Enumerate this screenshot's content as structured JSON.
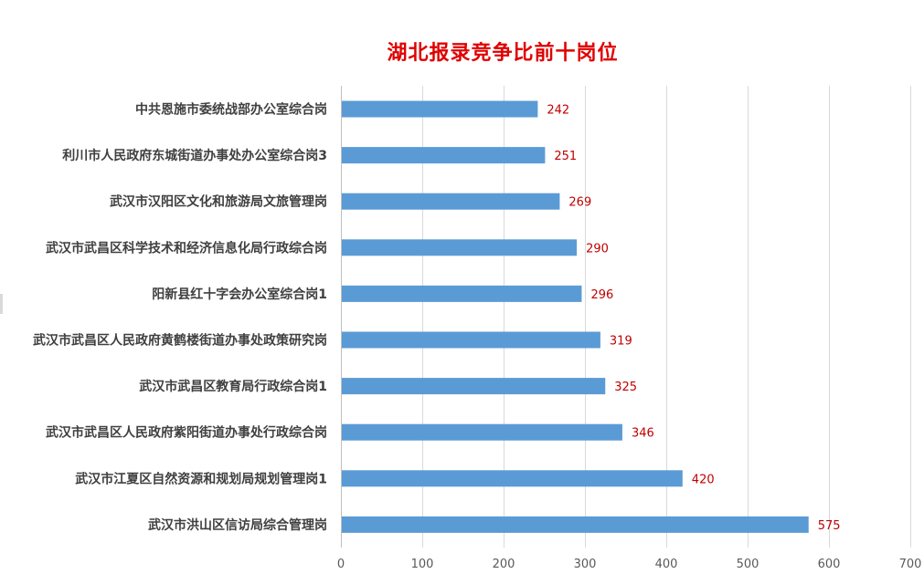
{
  "chart_data": {
    "type": "bar",
    "orientation": "horizontal",
    "title": "湖北报录竞争比前十岗位",
    "categories": [
      "中共恩施市委统战部办公室综合岗",
      "利川市人民政府东城街道办事处办公室综合岗3",
      "武汉市汉阳区文化和旅游局文旅管理岗",
      "武汉市武昌区科学技术和经济信息化局行政综合岗",
      "阳新县红十字会办公室综合岗1",
      "武汉市武昌区人民政府黄鹤楼街道办事处政策研究岗",
      "武汉市武昌区教育局行政综合岗1",
      "武汉市武昌区人民政府紫阳街道办事处行政综合岗",
      "武汉市江夏区自然资源和规划局规划管理岗1",
      "武汉市洪山区信访局综合管理岗"
    ],
    "values": [
      242,
      251,
      269,
      290,
      296,
      319,
      325,
      346,
      420,
      575
    ],
    "xlim": [
      0,
      700
    ],
    "xticks": [
      0,
      100,
      200,
      300,
      400,
      500,
      600,
      700
    ],
    "grid": "vertical",
    "legend": "none",
    "bar_color": "#5b9bd5",
    "label_color": "#c00000",
    "title_color": "#e00000",
    "category_label_color": "#404040",
    "tick_label_color": "#595959",
    "grid_color": "#d9d9d9"
  }
}
